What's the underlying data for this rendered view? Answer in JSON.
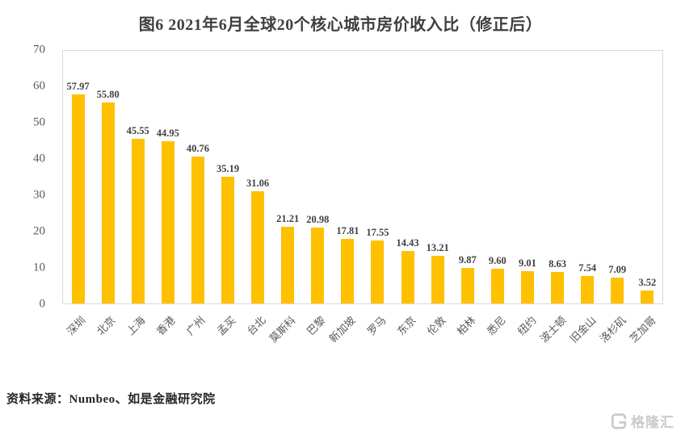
{
  "page_title": "图6 2021年6月全球20个核心城市房价收入比（修正后）",
  "chart_data": {
    "type": "bar",
    "title": "图6 2021年6月全球20个核心城市房价收入比（修正后）",
    "categories": [
      "深圳",
      "北京",
      "上海",
      "香港",
      "广州",
      "孟买",
      "台北",
      "莫斯科",
      "巴黎",
      "新加坡",
      "罗马",
      "东京",
      "伦敦",
      "柏林",
      "悉尼",
      "纽约",
      "波士顿",
      "旧金山",
      "洛杉矶",
      "芝加哥"
    ],
    "values": [
      57.97,
      55.8,
      45.55,
      44.95,
      40.76,
      35.19,
      31.06,
      21.21,
      20.98,
      17.81,
      17.55,
      14.43,
      13.21,
      9.87,
      9.6,
      9.01,
      8.63,
      7.54,
      7.09,
      3.52
    ],
    "data_labels": [
      "57.97",
      "55.80",
      "45.55",
      "44.95",
      "40.76",
      "35.19",
      "31.06",
      "21.21",
      "20.98",
      "17.81",
      "17.55",
      "14.43",
      "13.21",
      "9.87",
      "9.60",
      "9.01",
      "8.63",
      "7.54",
      "7.09",
      "3.52"
    ],
    "xlabel": "",
    "ylabel": "",
    "ylim": [
      0,
      70
    ],
    "y_ticks": [
      0,
      10,
      20,
      30,
      40,
      50,
      60,
      70
    ],
    "grid": "off",
    "legend": "none",
    "bar_color": "#FFC000",
    "plot_border_color": "#D9D9D9",
    "label_color": "#404040",
    "axis_text_color": "#595959"
  },
  "footer": {
    "source": "资料来源：Numbeo、如是金融研究院"
  },
  "watermark": {
    "logo_text": "格隆汇",
    "logo_icon": "gelonghui-g-mark",
    "color": "#C9CACC"
  }
}
